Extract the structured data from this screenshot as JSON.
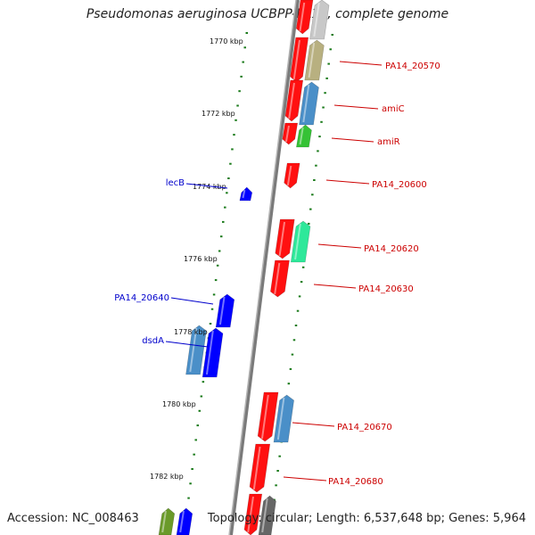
{
  "title": "Pseudomonas aeruginosa UCBPP-PA14, complete genome",
  "accession_text": "Accession: NC_008463",
  "topology_text": "Topology: circular; Length: 6,537,648 bp; Genes: 5,964",
  "colors": {
    "forward_label": "#cc0000",
    "reverse_label": "#0000cc",
    "tick": "#1a7a1a",
    "backbone": "#888888"
  },
  "scale_labels": [
    "1770 kbp",
    "1772 kbp",
    "1774 kbp",
    "1776 kbp",
    "1778 kbp",
    "1780 kbp",
    "1782 kbp"
  ],
  "genes_right": [
    {
      "label": "PA14_20570"
    },
    {
      "label": "amiC"
    },
    {
      "label": "amiR"
    },
    {
      "label": "PA14_20600"
    },
    {
      "label": "PA14_20620"
    },
    {
      "label": "PA14_20630"
    },
    {
      "label": "PA14_20670"
    },
    {
      "label": "PA14_20680"
    }
  ],
  "genes_left": [
    {
      "label": "lecB"
    },
    {
      "label": "PA14_20640"
    },
    {
      "label": "dsdA"
    }
  ]
}
